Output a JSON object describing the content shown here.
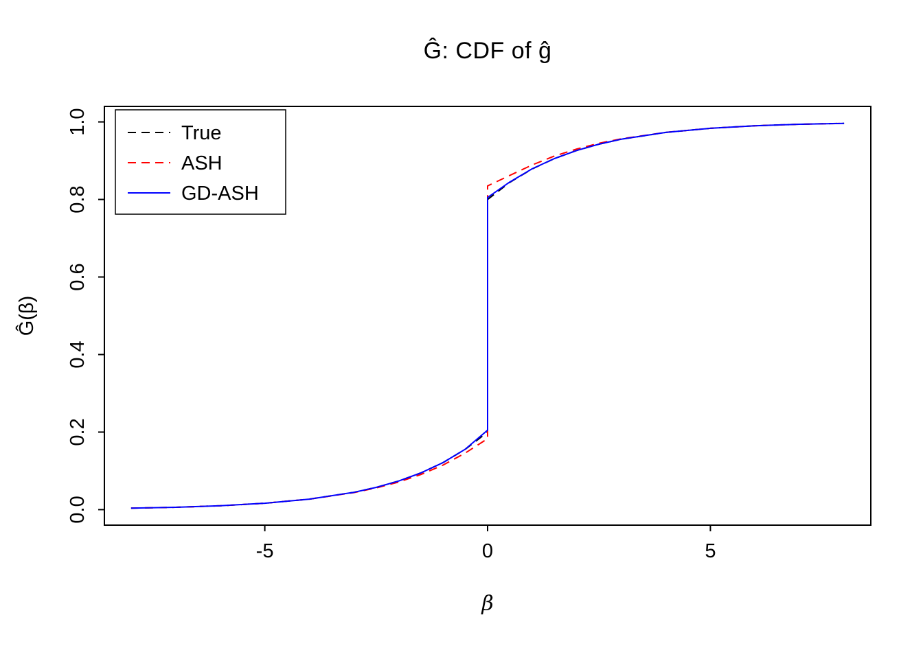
{
  "chart_data": {
    "type": "line",
    "title": "Ĝ: CDF of ĝ",
    "xlabel": "β",
    "ylabel": "Ĝ(β)",
    "xlim": [
      -8.6,
      8.6
    ],
    "ylim": [
      -0.04,
      1.04
    ],
    "xticks": [
      -5,
      0,
      5
    ],
    "yticks": [
      0.0,
      0.2,
      0.4,
      0.6,
      0.8,
      1.0
    ],
    "grid": false,
    "legend": {
      "position": "top-left",
      "entries": [
        {
          "label": "True",
          "color": "#000000",
          "dash": "dashed"
        },
        {
          "label": "ASH",
          "color": "#ff0000",
          "dash": "dashed"
        },
        {
          "label": "GD-ASH",
          "color": "#0000ff",
          "dash": "solid"
        }
      ]
    },
    "x": [
      -8,
      -7,
      -6,
      -5,
      -4,
      -3,
      -2.5,
      -2,
      -1.5,
      -1,
      -0.5,
      0,
      0,
      0.5,
      1,
      1.5,
      2,
      2.5,
      3,
      4,
      5,
      6,
      7,
      8
    ],
    "series": [
      {
        "name": "True",
        "color": "#000000",
        "style": "dashed",
        "y": [
          0.0037,
          0.006,
          0.01,
          0.0164,
          0.0271,
          0.0446,
          0.0573,
          0.0736,
          0.0945,
          0.1213,
          0.1558,
          0.2,
          0.8,
          0.8442,
          0.8787,
          0.9055,
          0.9264,
          0.9427,
          0.9554,
          0.9729,
          0.9836,
          0.99,
          0.994,
          0.9963
        ]
      },
      {
        "name": "ASH",
        "color": "#ff0000",
        "style": "dashed",
        "y": [
          0.0037,
          0.006,
          0.01,
          0.0164,
          0.0271,
          0.044,
          0.056,
          0.071,
          0.0905,
          0.115,
          0.146,
          0.183,
          0.835,
          0.862,
          0.889,
          0.912,
          0.93,
          0.945,
          0.9565,
          0.973,
          0.9836,
          0.99,
          0.994,
          0.9963
        ]
      },
      {
        "name": "GD-ASH",
        "color": "#0000ff",
        "style": "solid",
        "y": [
          0.0037,
          0.006,
          0.01,
          0.0164,
          0.0271,
          0.0446,
          0.0573,
          0.0736,
          0.0945,
          0.1213,
          0.156,
          0.205,
          0.805,
          0.845,
          0.879,
          0.9055,
          0.9264,
          0.9427,
          0.9554,
          0.9729,
          0.9836,
          0.99,
          0.994,
          0.9963
        ]
      }
    ]
  }
}
